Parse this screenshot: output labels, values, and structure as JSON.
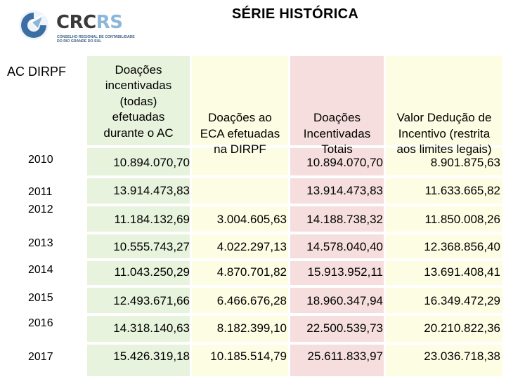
{
  "logo": {
    "brand_crc": "CRC",
    "brand_rs": "RS",
    "subtitle_line1": "CONSELHO REGIONAL DE CONTABILIDADE",
    "subtitle_line2": "DO RIO GRANDE DO SUL"
  },
  "title": "SÉRIE HISTÓRICA",
  "table": {
    "row_header": "AC DIRPF",
    "columns": [
      "Doações incentivadas (todas) efetuadas durante o AC",
      "Doações ao ECA efetuadas na DIRPF",
      "Doações Incentivadas Totais",
      "Valor Dedução de Incentivo (restrita aos limites legais)"
    ],
    "column_lines": [
      [
        "Doações",
        "incentivadas",
        "(todas)",
        "efetuadas",
        "durante o AC"
      ],
      [
        "Doações ao",
        "ECA efetuadas",
        "na DIRPF"
      ],
      [
        "Doações",
        "Incentivadas",
        "Totais"
      ],
      [
        "Valor Dedução de",
        "Incentivo (restrita",
        "aos limites legais)"
      ]
    ],
    "years": [
      "2010",
      "2011",
      "2012",
      "2013",
      "2014",
      "2015",
      "2016",
      "2017"
    ],
    "rows": [
      [
        "10.894.070,70",
        "",
        "10.894.070,70",
        "8.901.875,63"
      ],
      [
        "13.914.473,83",
        "",
        "13.914.473,83",
        "11.633.665,82"
      ],
      [
        "11.184.132,69",
        "3.004.605,63",
        "14.188.738,32",
        "11.850.008,26"
      ],
      [
        "10.555.743,27",
        "4.022.297,13",
        "14.578.040,40",
        "12.368.856,40"
      ],
      [
        "11.043.250,29",
        "4.870.701,82",
        "15.913.952,11",
        "13.691.408,41"
      ],
      [
        "12.493.671,66",
        "6.466.676,28",
        "18.960.347,94",
        "16.349.472,29"
      ],
      [
        "14.318.140,63",
        "8.182.399,10",
        "22.500.539,73",
        "20.210.822,36"
      ],
      [
        "15.426.319,18",
        "10.185.514,79",
        "25.611.833,97",
        "23.036.718,38"
      ]
    ]
  }
}
